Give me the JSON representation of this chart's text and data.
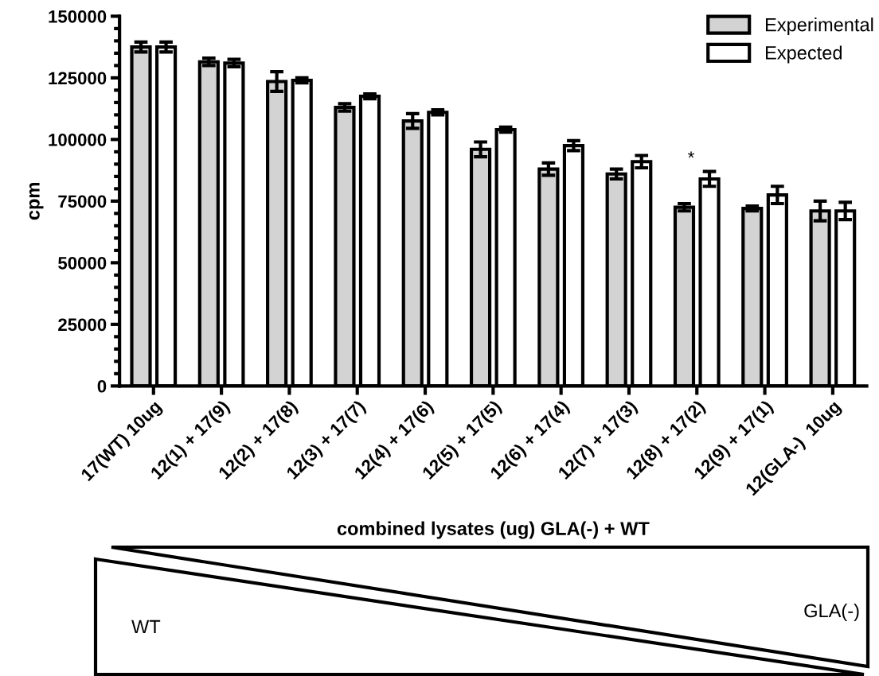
{
  "chart_data": {
    "type": "bar",
    "xlabel": "combined lysates (ug) GLA(-) + WT",
    "ylabel": "cpm",
    "categories": [
      "17(WT) 10ug",
      "12(1) + 17(9)",
      "12(2) + 17(8)",
      "12(3) + 17(7)",
      "12(4) + 17(6)",
      "12(5) + 17(5)",
      "12(6) + 17(4)",
      "12(7) + 17(3)",
      "12(8) + 17(2)",
      "12(9) + 17(1)",
      "12(GLA-)  10ug"
    ],
    "series": [
      {
        "name": "Experimental",
        "color": "#d3d3d3",
        "values": [
          137500,
          131500,
          123500,
          113000,
          107500,
          96000,
          88000,
          86000,
          72500,
          72000,
          71000
        ],
        "errors": [
          2000,
          1500,
          4000,
          1500,
          3000,
          3000,
          2500,
          2000,
          1500,
          1000,
          4000
        ]
      },
      {
        "name": "Expected",
        "color": "#ffffff",
        "values": [
          137500,
          131000,
          124000,
          117500,
          111000,
          104000,
          97500,
          91000,
          84000,
          77500,
          71000
        ],
        "errors": [
          2000,
          1500,
          1000,
          1000,
          1000,
          1000,
          2000,
          2500,
          3000,
          3500,
          3500
        ]
      }
    ],
    "ylim": [
      0,
      150000
    ],
    "yticks": [
      0,
      25000,
      50000,
      75000,
      100000,
      125000,
      150000
    ],
    "grid": false,
    "legend": "top right",
    "annotations": [
      "*",
      "WT",
      "GLA(-)"
    ]
  }
}
